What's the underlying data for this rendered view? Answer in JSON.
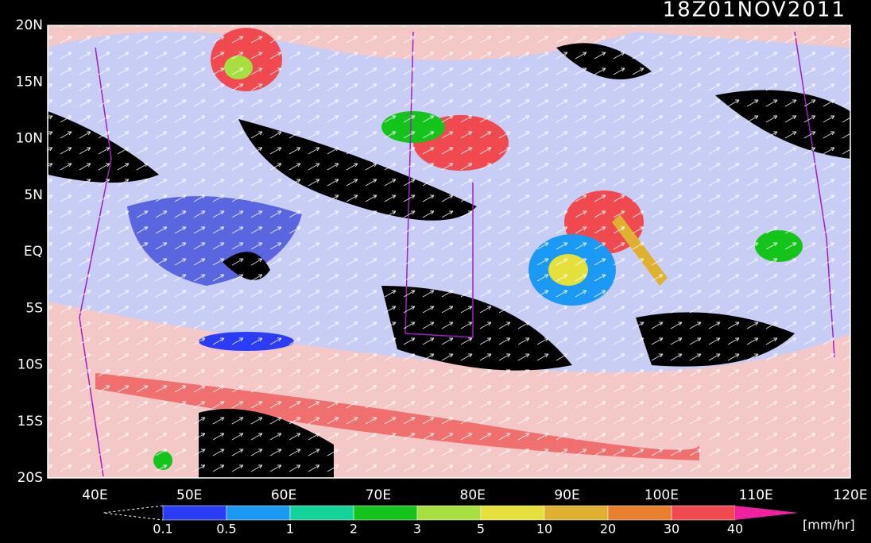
{
  "title": "18Z01NOV2011",
  "map": {
    "lat_labels": [
      "20N",
      "15N",
      "10N",
      "5N",
      "EQ",
      "5S",
      "10S",
      "15S",
      "20S"
    ],
    "lon_labels": [
      "40E",
      "50E",
      "60E",
      "70E",
      "80E",
      "90E",
      "100E",
      "110E",
      "120E"
    ]
  },
  "colorbar": {
    "ticks": [
      0.1,
      0.5,
      1,
      2,
      3,
      5,
      10,
      20,
      30,
      40
    ],
    "colors": [
      "#2a3cf5",
      "#1a9af5",
      "#12d49a",
      "#14c41a",
      "#a6e040",
      "#e6e03c",
      "#e0b030",
      "#e88030",
      "#f04a50",
      "#f020a0"
    ],
    "unit": "[mm/hr]"
  }
}
